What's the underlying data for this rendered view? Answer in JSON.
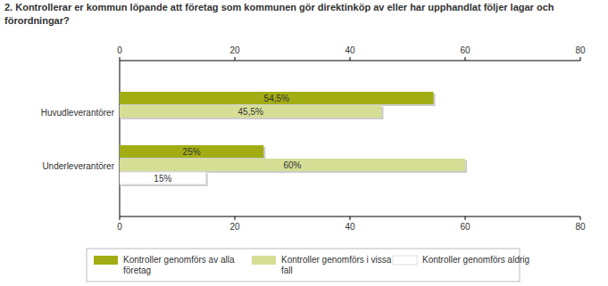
{
  "chart_data": {
    "type": "bar",
    "orientation": "horizontal",
    "title": "2. Kontrollerar er kommun löpande att företag som kommunen gör direktinköp av eller har upphandlat följer lagar och förordningar?",
    "categories": [
      "Huvudleverantörer",
      "Underleverantörer"
    ],
    "series": [
      {
        "name": "Kontroller genomförs av alla företag",
        "color": "#a2ad13",
        "values": [
          54.5,
          25
        ],
        "value_labels": [
          "54,5%",
          "25%"
        ]
      },
      {
        "name": "Kontroller genomförs i vissa fall",
        "color": "#d6de96",
        "values": [
          45.5,
          60
        ],
        "value_labels": [
          "45,5%",
          "60%"
        ]
      },
      {
        "name": "Kontroller genomförs aldrig",
        "color": "#ffffff",
        "values": [
          null,
          15
        ],
        "value_labels": [
          null,
          "15%"
        ]
      }
    ],
    "xlim": [
      0,
      80
    ],
    "xticks": [
      0,
      20,
      40,
      60,
      80
    ],
    "grid": false,
    "legend": "bottom",
    "data_labels": true
  }
}
